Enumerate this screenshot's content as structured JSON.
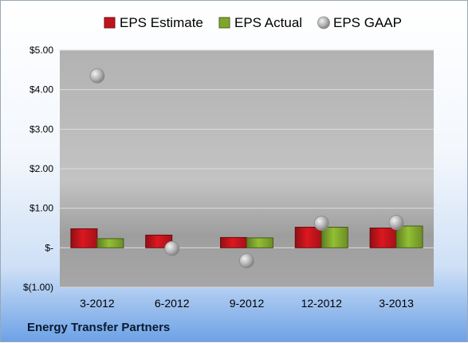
{
  "chart_data": {
    "type": "bar",
    "title": "",
    "xlabel": "",
    "ylabel": "",
    "categories": [
      "3-2012",
      "6-2012",
      "9-2012",
      "12-2012",
      "3-2013"
    ],
    "series": [
      {
        "name": "EPS Estimate",
        "kind": "bar",
        "color": "#c0141c",
        "values": [
          0.48,
          0.32,
          0.26,
          0.52,
          0.5
        ]
      },
      {
        "name": "EPS Actual",
        "kind": "bar",
        "color": "#7fa62c",
        "values": [
          0.23,
          null,
          0.25,
          0.52,
          0.55
        ]
      },
      {
        "name": "EPS GAAP",
        "kind": "marker",
        "color": "#a9a9a9",
        "values": [
          4.35,
          -0.02,
          -0.33,
          0.62,
          0.64
        ]
      }
    ],
    "ylim": [
      -1.0,
      5.0
    ],
    "yticks": [
      5,
      4,
      3,
      2,
      1,
      0,
      -1
    ],
    "ytick_labels": [
      "$5.00",
      "$4.00",
      "$3.00",
      "$2.00",
      "$1.00",
      "$-",
      "$(1.00)"
    ],
    "grid": true,
    "legend_position": "top"
  },
  "company": "Energy Transfer Partners"
}
